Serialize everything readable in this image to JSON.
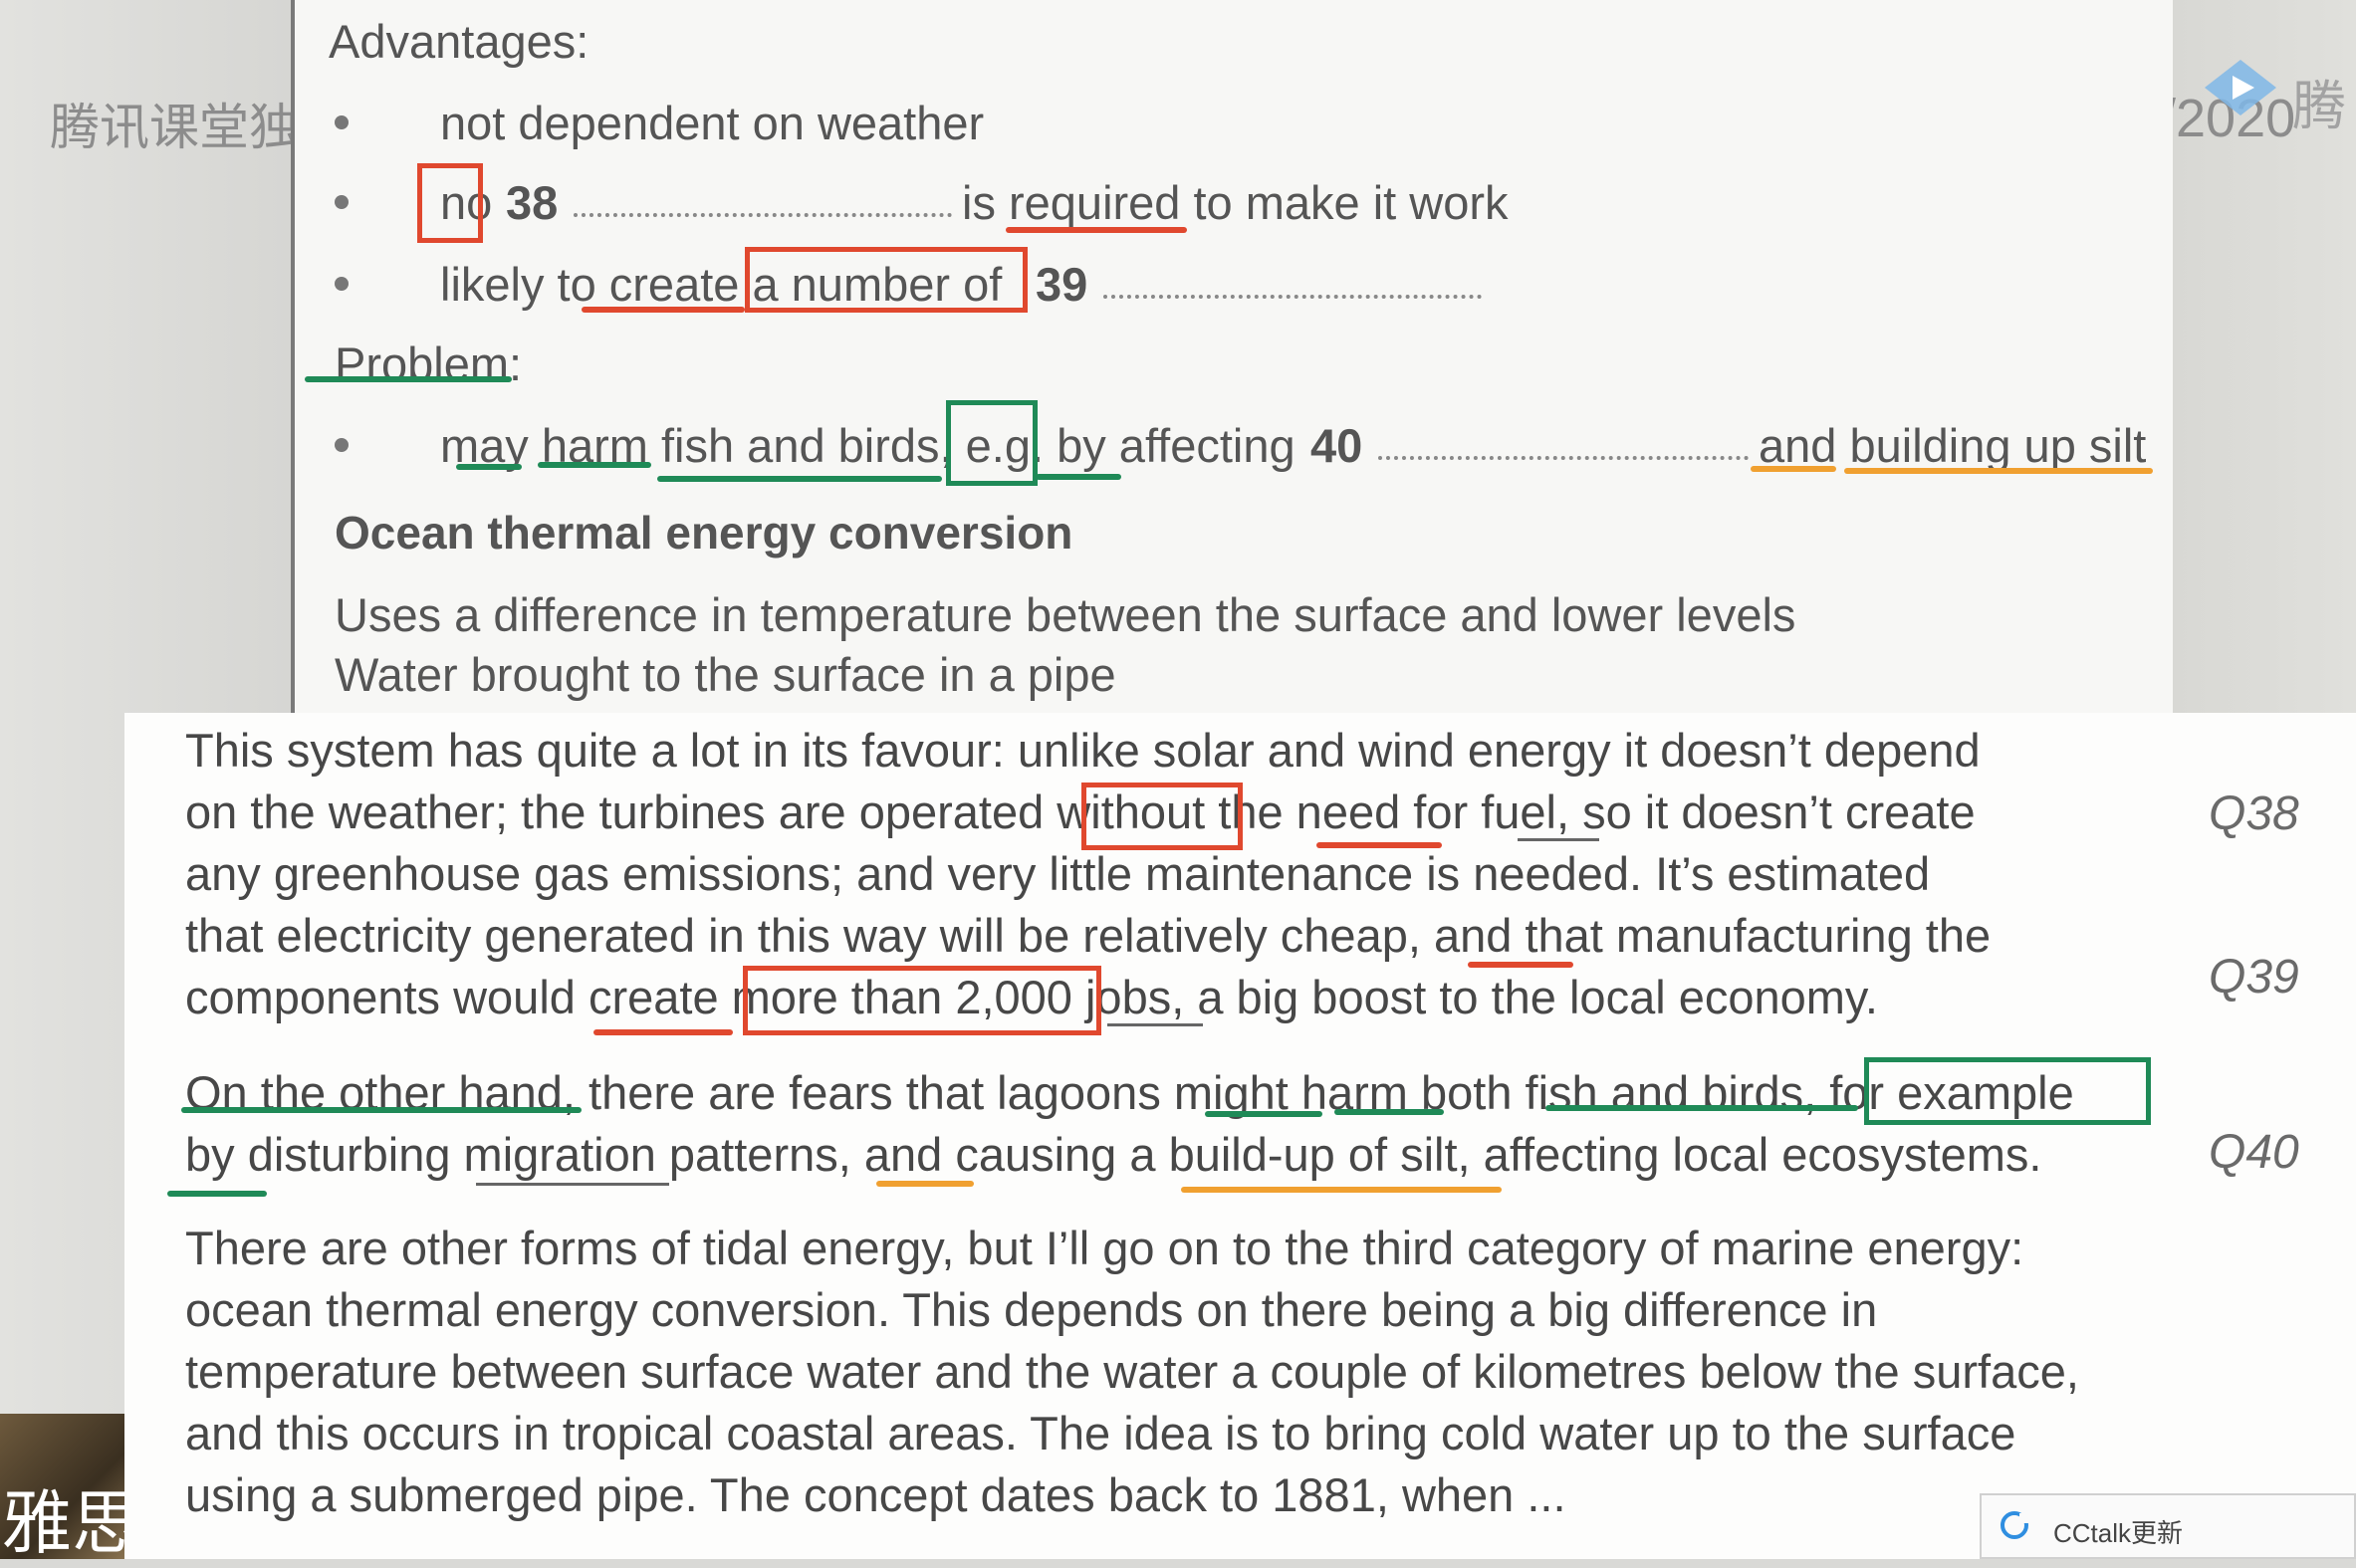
{
  "background": {
    "watermark_left": "腾讯课堂独",
    "watermark_year": "/2020",
    "watermark_right": "腾",
    "avatar_text": "雅思"
  },
  "slide": {
    "advantages_heading": "Advantages:",
    "bullet1": "not dependent on weather",
    "bullet2_prefix": "no",
    "q38_number": "38",
    "bullet2_suffix": "is required to make it work",
    "bullet3_prefix": "likely to create a number of",
    "q39_number": "39",
    "problem_heading": "Problem:",
    "bullet4_prefix": "may harm fish and birds, e.g. by affecting",
    "q40_number": "40",
    "bullet4_suffix": "and building up silt",
    "section_title": "Ocean thermal energy conversion",
    "desc1": "Uses a difference in temperature between the surface and lower levels",
    "desc2": "Water brought to the surface in a pipe"
  },
  "transcript": {
    "lines": [
      "This system has quite a lot in its favour: unlike solar and wind energy it doesn’t depend",
      "on the weather; the turbines are operated without the need for fuel, so it doesn’t create",
      "any greenhouse gas emissions; and very little maintenance is needed. It’s estimated",
      "that electricity generated in this way will be relatively cheap, and that manufacturing the",
      "components would create more than 2,000 jobs, a big boost to the local economy.",
      "On the other hand, there are fears that lagoons might harm both fish and birds, for example",
      "by disturbing migration patterns, and causing a build-up of silt, affecting local ecosystems.",
      "There are other forms of tidal energy, but I’ll go on to the third category of marine energy:",
      "ocean thermal energy conversion. This depends on there being a big difference in",
      "temperature between surface water and the water a couple of kilometres below the surface,",
      "and this occurs in tropical coastal areas. The idea is to bring cold water up to the surface",
      "using a submerged pipe. The concept dates back to 1881, when ..."
    ],
    "q_labels": [
      "Q38",
      "Q39",
      "Q40"
    ]
  },
  "toast": {
    "label": "CCtalk更新"
  },
  "colors": {
    "red": "#e0482e",
    "green": "#1f8a57",
    "orange": "#f0a030"
  },
  "icons": {
    "play": "play-logo-icon",
    "toast": "cctalk-icon"
  }
}
